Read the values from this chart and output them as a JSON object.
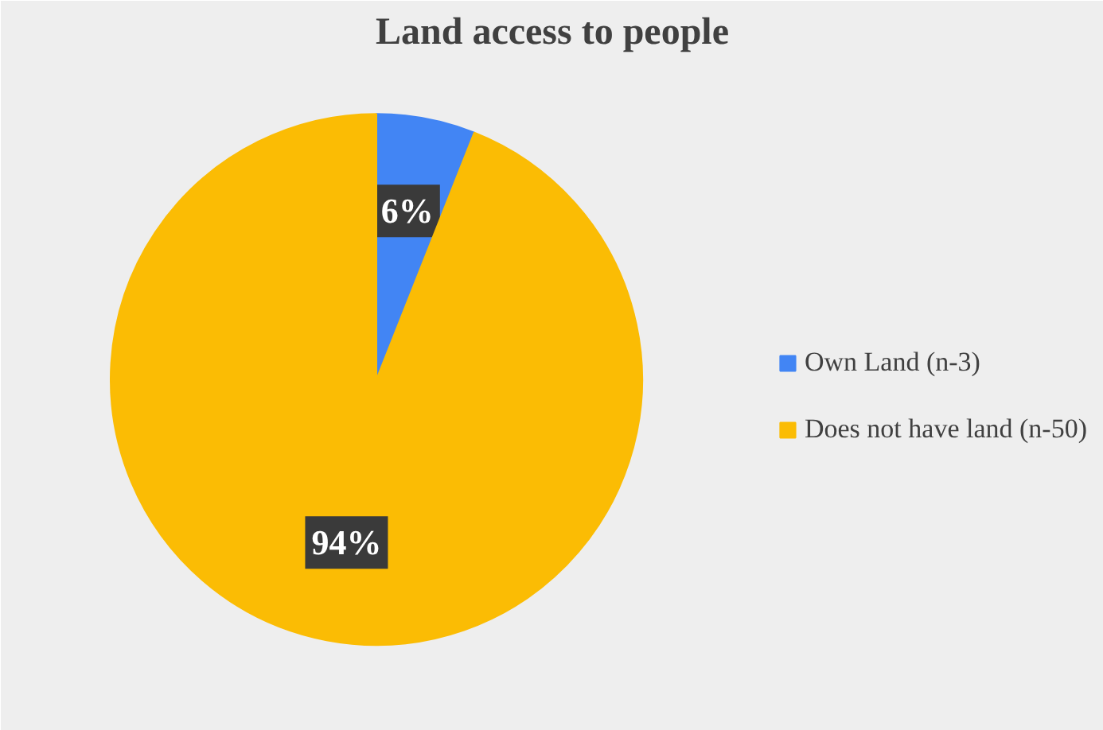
{
  "chart_data": {
    "type": "pie",
    "title": "Land access to people",
    "categories": [
      "Own Land (n-3)",
      "Does not have land (n-50)"
    ],
    "values": [
      6,
      94
    ],
    "colors": [
      "#4285f4",
      "#fbbc04"
    ],
    "value_labels": [
      "6%",
      "94%"
    ],
    "legend": "right"
  }
}
